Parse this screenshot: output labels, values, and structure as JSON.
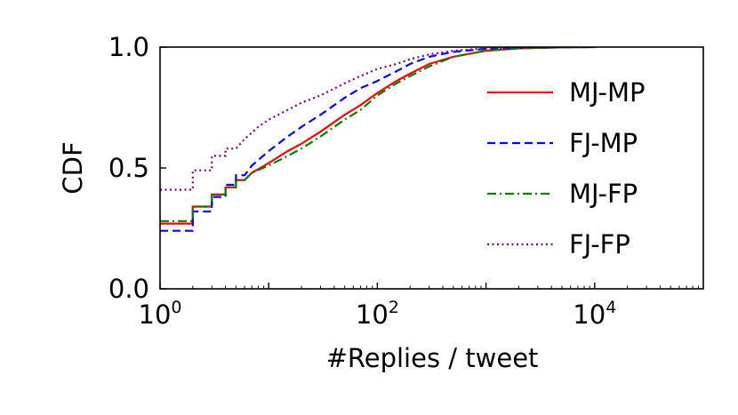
{
  "chart_data": {
    "type": "line",
    "title": "",
    "xlabel": "#Replies / tweet",
    "ylabel": "CDF",
    "x_scale": "log",
    "xlim": [
      1,
      100000
    ],
    "ylim": [
      0,
      1
    ],
    "x_ticks": [
      {
        "value": 1,
        "base": "10",
        "exp": "0"
      },
      {
        "value": 100,
        "base": "10",
        "exp": "2"
      },
      {
        "value": 10000,
        "base": "10",
        "exp": "4"
      }
    ],
    "y_ticks": [
      {
        "value": 0,
        "label": "0.0"
      },
      {
        "value": 0.5,
        "label": "0.5"
      },
      {
        "value": 1,
        "label": "1.0"
      }
    ],
    "grid": false,
    "legend_position": "right",
    "series": [
      {
        "name": "MJ-MP",
        "color": "#ff0000",
        "style": "solid",
        "points": [
          [
            1,
            0.27
          ],
          [
            2,
            0.27
          ],
          [
            2,
            0.34
          ],
          [
            3,
            0.34
          ],
          [
            3,
            0.39
          ],
          [
            4,
            0.39
          ],
          [
            4,
            0.42
          ],
          [
            5,
            0.42
          ],
          [
            5,
            0.45
          ],
          [
            6,
            0.45
          ],
          [
            7,
            0.48
          ],
          [
            10,
            0.52
          ],
          [
            15,
            0.57
          ],
          [
            20,
            0.6
          ],
          [
            30,
            0.65
          ],
          [
            50,
            0.72
          ],
          [
            70,
            0.76
          ],
          [
            100,
            0.81
          ],
          [
            150,
            0.86
          ],
          [
            200,
            0.89
          ],
          [
            300,
            0.93
          ],
          [
            500,
            0.96
          ],
          [
            1000,
            0.985
          ],
          [
            2000,
            0.995
          ],
          [
            5000,
            0.999
          ],
          [
            10000,
            1.0
          ]
        ]
      },
      {
        "name": "FJ-MP",
        "color": "#0000ff",
        "style": "dashed",
        "points": [
          [
            1,
            0.24
          ],
          [
            2,
            0.24
          ],
          [
            2,
            0.32
          ],
          [
            3,
            0.32
          ],
          [
            3,
            0.38
          ],
          [
            4,
            0.38
          ],
          [
            4,
            0.43
          ],
          [
            5,
            0.43
          ],
          [
            5,
            0.47
          ],
          [
            6,
            0.47
          ],
          [
            7,
            0.51
          ],
          [
            10,
            0.57
          ],
          [
            15,
            0.63
          ],
          [
            20,
            0.67
          ],
          [
            30,
            0.72
          ],
          [
            50,
            0.79
          ],
          [
            70,
            0.83
          ],
          [
            100,
            0.86
          ],
          [
            150,
            0.9
          ],
          [
            200,
            0.93
          ],
          [
            300,
            0.96
          ],
          [
            500,
            0.98
          ],
          [
            1000,
            0.993
          ],
          [
            5000,
            1.0
          ]
        ]
      },
      {
        "name": "MJ-FP",
        "color": "#008000",
        "style": "dashdot",
        "points": [
          [
            1,
            0.28
          ],
          [
            2,
            0.28
          ],
          [
            2,
            0.34
          ],
          [
            3,
            0.34
          ],
          [
            3,
            0.39
          ],
          [
            4,
            0.39
          ],
          [
            4,
            0.42
          ],
          [
            5,
            0.42
          ],
          [
            5,
            0.45
          ],
          [
            6,
            0.45
          ],
          [
            7,
            0.48
          ],
          [
            10,
            0.51
          ],
          [
            15,
            0.55
          ],
          [
            20,
            0.58
          ],
          [
            30,
            0.63
          ],
          [
            50,
            0.7
          ],
          [
            70,
            0.74
          ],
          [
            100,
            0.8
          ],
          [
            150,
            0.85
          ],
          [
            200,
            0.88
          ],
          [
            300,
            0.92
          ],
          [
            500,
            0.96
          ],
          [
            1000,
            0.985
          ],
          [
            2000,
            0.995
          ],
          [
            5000,
            0.999
          ],
          [
            10000,
            1.0
          ]
        ]
      },
      {
        "name": "FJ-FP",
        "color": "#800080",
        "style": "dotted",
        "points": [
          [
            1,
            0.41
          ],
          [
            2,
            0.41
          ],
          [
            2,
            0.49
          ],
          [
            3,
            0.49
          ],
          [
            3,
            0.55
          ],
          [
            4,
            0.55
          ],
          [
            4,
            0.58
          ],
          [
            5,
            0.58
          ],
          [
            6,
            0.62
          ],
          [
            8,
            0.67
          ],
          [
            10,
            0.7
          ],
          [
            15,
            0.74
          ],
          [
            20,
            0.77
          ],
          [
            30,
            0.8
          ],
          [
            50,
            0.85
          ],
          [
            70,
            0.88
          ],
          [
            100,
            0.91
          ],
          [
            150,
            0.93
          ],
          [
            200,
            0.95
          ],
          [
            300,
            0.97
          ],
          [
            500,
            0.985
          ],
          [
            1000,
            0.995
          ],
          [
            3000,
            1.0
          ]
        ]
      }
    ]
  }
}
